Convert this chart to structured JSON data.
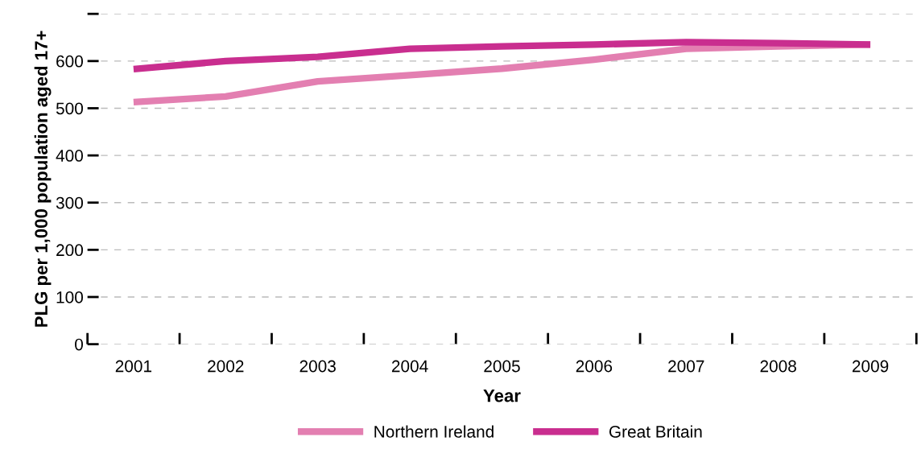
{
  "chart_data": {
    "type": "line",
    "xlabel": "Year",
    "ylabel": "PLG per 1,000 population aged 17+",
    "categories": [
      "2001",
      "2002",
      "2003",
      "2004",
      "2005",
      "2006",
      "2007",
      "2008",
      "2009"
    ],
    "series": [
      {
        "name": "Northern Ireland",
        "color": "#e37fb1",
        "values": [
          513,
          525,
          557,
          570,
          584,
          603,
          626,
          631,
          635
        ]
      },
      {
        "name": "Great Britain",
        "color": "#c92e8f",
        "values": [
          583,
          600,
          609,
          626,
          631,
          635,
          640,
          638,
          635
        ]
      }
    ],
    "ylim": [
      0,
      700
    ],
    "yticks": [
      0,
      100,
      200,
      300,
      400,
      500,
      600,
      {
        "value": 700,
        "label": null
      }
    ],
    "grid": "y",
    "legend": "bottom",
    "marker": "none",
    "line_style": "solid"
  }
}
